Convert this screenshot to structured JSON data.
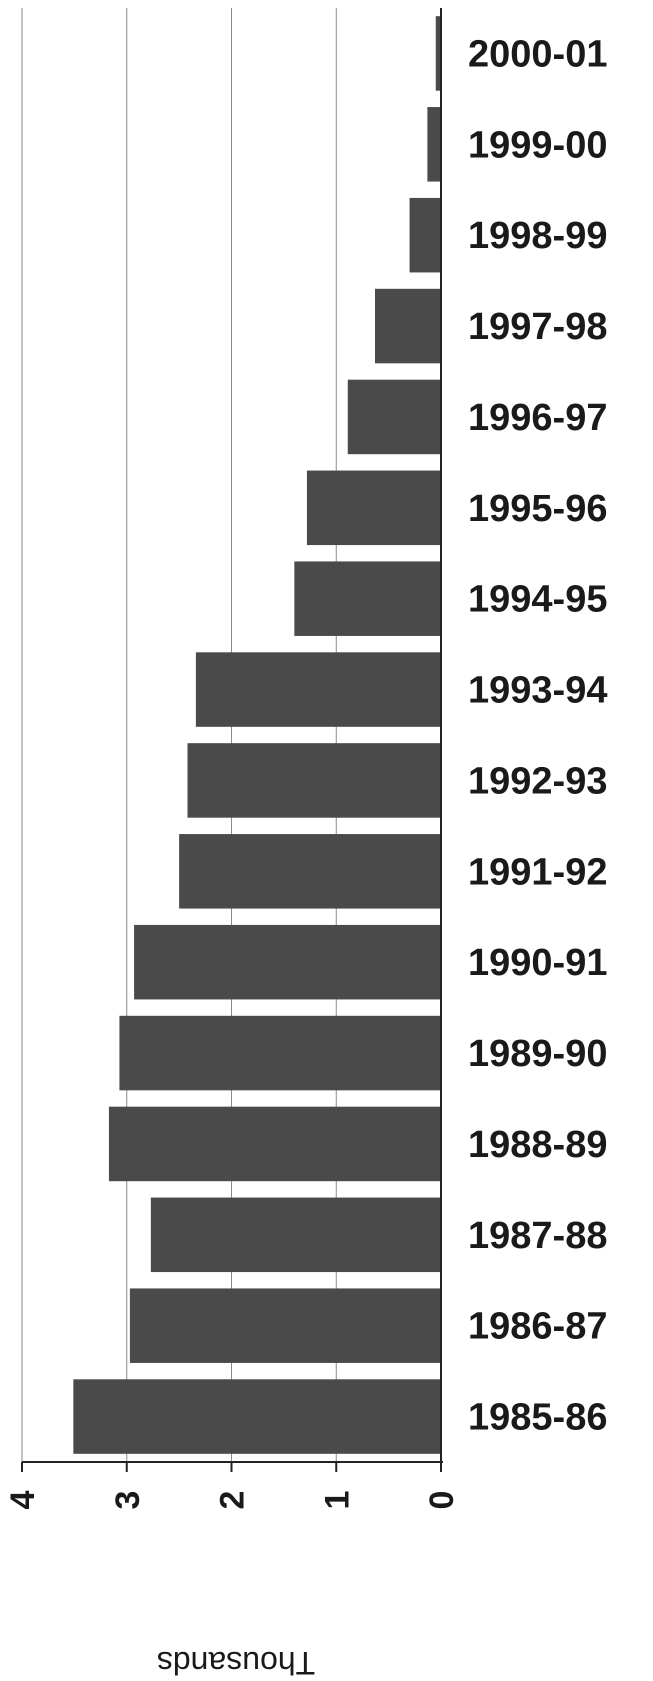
{
  "chart_data": {
    "type": "bar",
    "orientation": "horizontal-reversed",
    "categories": [
      "2000-01",
      "1999-00",
      "1998-99",
      "1997-98",
      "1996-97",
      "1995-96",
      "1994-95",
      "1993-94",
      "1992-93",
      "1991-92",
      "1990-91",
      "1989-90",
      "1988-89",
      "1987-88",
      "1986-87",
      "1985-86"
    ],
    "values": [
      0.05,
      0.13,
      0.3,
      0.63,
      0.89,
      1.28,
      1.4,
      2.34,
      2.42,
      2.5,
      2.93,
      3.07,
      3.17,
      2.77,
      2.97,
      3.51
    ],
    "ticks": [
      "0",
      "1",
      "2",
      "3",
      "4"
    ],
    "xlabel": "Thousands",
    "xlim": [
      0,
      4
    ],
    "grid": true,
    "bar_color": "#4a4a4a"
  }
}
